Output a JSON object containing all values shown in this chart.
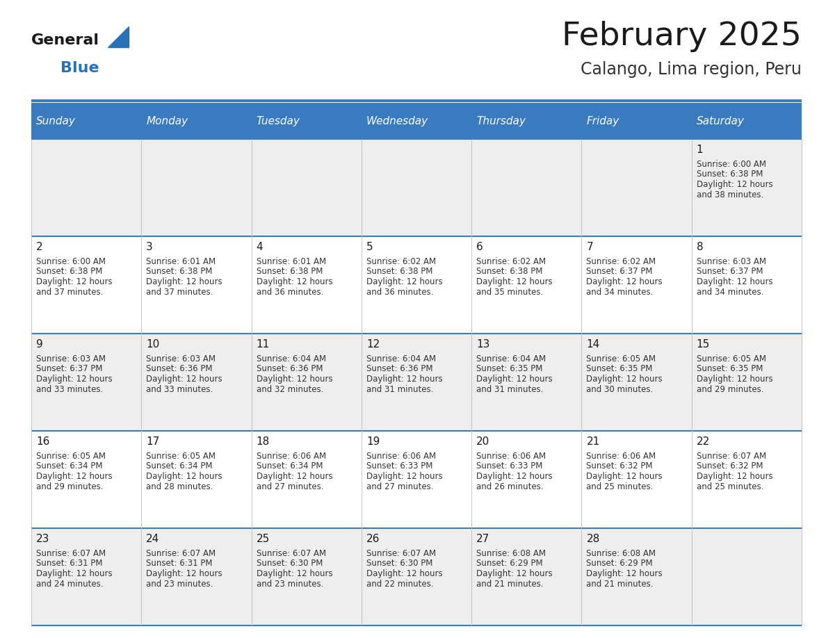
{
  "title": "February 2025",
  "subtitle": "Calango, Lima region, Peru",
  "header_color": "#3a7abf",
  "header_text_color": "#ffffff",
  "cell_bg_row0": "#eeeeee",
  "cell_bg_row1": "#ffffff",
  "cell_bg_row2": "#eeeeee",
  "cell_bg_row3": "#ffffff",
  "cell_bg_row4": "#eeeeee",
  "separator_color": "#3a7abf",
  "day_headers": [
    "Sunday",
    "Monday",
    "Tuesday",
    "Wednesday",
    "Thursday",
    "Friday",
    "Saturday"
  ],
  "days_data": [
    {
      "day": 1,
      "col": 6,
      "row": 0,
      "sunrise": "6:00 AM",
      "sunset": "6:38 PM",
      "daylight": "12 hours and 38 minutes."
    },
    {
      "day": 2,
      "col": 0,
      "row": 1,
      "sunrise": "6:00 AM",
      "sunset": "6:38 PM",
      "daylight": "12 hours and 37 minutes."
    },
    {
      "day": 3,
      "col": 1,
      "row": 1,
      "sunrise": "6:01 AM",
      "sunset": "6:38 PM",
      "daylight": "12 hours and 37 minutes."
    },
    {
      "day": 4,
      "col": 2,
      "row": 1,
      "sunrise": "6:01 AM",
      "sunset": "6:38 PM",
      "daylight": "12 hours and 36 minutes."
    },
    {
      "day": 5,
      "col": 3,
      "row": 1,
      "sunrise": "6:02 AM",
      "sunset": "6:38 PM",
      "daylight": "12 hours and 36 minutes."
    },
    {
      "day": 6,
      "col": 4,
      "row": 1,
      "sunrise": "6:02 AM",
      "sunset": "6:38 PM",
      "daylight": "12 hours and 35 minutes."
    },
    {
      "day": 7,
      "col": 5,
      "row": 1,
      "sunrise": "6:02 AM",
      "sunset": "6:37 PM",
      "daylight": "12 hours and 34 minutes."
    },
    {
      "day": 8,
      "col": 6,
      "row": 1,
      "sunrise": "6:03 AM",
      "sunset": "6:37 PM",
      "daylight": "12 hours and 34 minutes."
    },
    {
      "day": 9,
      "col": 0,
      "row": 2,
      "sunrise": "6:03 AM",
      "sunset": "6:37 PM",
      "daylight": "12 hours and 33 minutes."
    },
    {
      "day": 10,
      "col": 1,
      "row": 2,
      "sunrise": "6:03 AM",
      "sunset": "6:36 PM",
      "daylight": "12 hours and 33 minutes."
    },
    {
      "day": 11,
      "col": 2,
      "row": 2,
      "sunrise": "6:04 AM",
      "sunset": "6:36 PM",
      "daylight": "12 hours and 32 minutes."
    },
    {
      "day": 12,
      "col": 3,
      "row": 2,
      "sunrise": "6:04 AM",
      "sunset": "6:36 PM",
      "daylight": "12 hours and 31 minutes."
    },
    {
      "day": 13,
      "col": 4,
      "row": 2,
      "sunrise": "6:04 AM",
      "sunset": "6:35 PM",
      "daylight": "12 hours and 31 minutes."
    },
    {
      "day": 14,
      "col": 5,
      "row": 2,
      "sunrise": "6:05 AM",
      "sunset": "6:35 PM",
      "daylight": "12 hours and 30 minutes."
    },
    {
      "day": 15,
      "col": 6,
      "row": 2,
      "sunrise": "6:05 AM",
      "sunset": "6:35 PM",
      "daylight": "12 hours and 29 minutes."
    },
    {
      "day": 16,
      "col": 0,
      "row": 3,
      "sunrise": "6:05 AM",
      "sunset": "6:34 PM",
      "daylight": "12 hours and 29 minutes."
    },
    {
      "day": 17,
      "col": 1,
      "row": 3,
      "sunrise": "6:05 AM",
      "sunset": "6:34 PM",
      "daylight": "12 hours and 28 minutes."
    },
    {
      "day": 18,
      "col": 2,
      "row": 3,
      "sunrise": "6:06 AM",
      "sunset": "6:34 PM",
      "daylight": "12 hours and 27 minutes."
    },
    {
      "day": 19,
      "col": 3,
      "row": 3,
      "sunrise": "6:06 AM",
      "sunset": "6:33 PM",
      "daylight": "12 hours and 27 minutes."
    },
    {
      "day": 20,
      "col": 4,
      "row": 3,
      "sunrise": "6:06 AM",
      "sunset": "6:33 PM",
      "daylight": "12 hours and 26 minutes."
    },
    {
      "day": 21,
      "col": 5,
      "row": 3,
      "sunrise": "6:06 AM",
      "sunset": "6:32 PM",
      "daylight": "12 hours and 25 minutes."
    },
    {
      "day": 22,
      "col": 6,
      "row": 3,
      "sunrise": "6:07 AM",
      "sunset": "6:32 PM",
      "daylight": "12 hours and 25 minutes."
    },
    {
      "day": 23,
      "col": 0,
      "row": 4,
      "sunrise": "6:07 AM",
      "sunset": "6:31 PM",
      "daylight": "12 hours and 24 minutes."
    },
    {
      "day": 24,
      "col": 1,
      "row": 4,
      "sunrise": "6:07 AM",
      "sunset": "6:31 PM",
      "daylight": "12 hours and 23 minutes."
    },
    {
      "day": 25,
      "col": 2,
      "row": 4,
      "sunrise": "6:07 AM",
      "sunset": "6:30 PM",
      "daylight": "12 hours and 23 minutes."
    },
    {
      "day": 26,
      "col": 3,
      "row": 4,
      "sunrise": "6:07 AM",
      "sunset": "6:30 PM",
      "daylight": "12 hours and 22 minutes."
    },
    {
      "day": 27,
      "col": 4,
      "row": 4,
      "sunrise": "6:08 AM",
      "sunset": "6:29 PM",
      "daylight": "12 hours and 21 minutes."
    },
    {
      "day": 28,
      "col": 5,
      "row": 4,
      "sunrise": "6:08 AM",
      "sunset": "6:29 PM",
      "daylight": "12 hours and 21 minutes."
    }
  ],
  "n_rows": 5,
  "n_cols": 7,
  "fig_width": 11.88,
  "fig_height": 9.18,
  "dpi": 100
}
